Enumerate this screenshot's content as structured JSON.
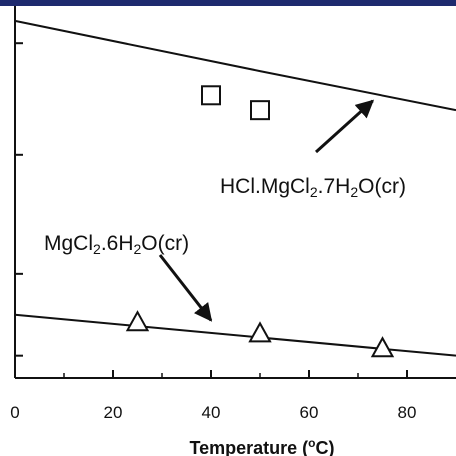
{
  "chart_data": {
    "type": "scatter",
    "title": "",
    "xlabel": "Temperature (",
    "xlabel_sup": "o",
    "xlabel_unit": "C)",
    "ylabel": "",
    "xlim": [
      0,
      90
    ],
    "ylim": [
      0,
      1
    ],
    "x_ticks": [
      "0",
      "20",
      "40",
      "60",
      "80"
    ],
    "grid": false,
    "series": [
      {
        "marker": "square",
        "points": [
          {
            "x": 40,
            "y": 0.76
          },
          {
            "x": 50,
            "y": 0.72
          }
        ]
      },
      {
        "marker": "triangle",
        "points": [
          {
            "x": 25,
            "y": 0.15
          },
          {
            "x": 50,
            "y": 0.12
          },
          {
            "x": 75,
            "y": 0.08
          }
        ]
      }
    ],
    "lines": [
      {
        "points": [
          {
            "x": 0,
            "y": 0.96
          },
          {
            "x": 50,
            "y": 0.825
          },
          {
            "x": 90,
            "y": 0.72
          }
        ]
      },
      {
        "points": [
          {
            "x": 0,
            "y": 0.17
          },
          {
            "x": 90,
            "y": 0.06
          }
        ]
      }
    ],
    "annotations": [
      {
        "parts": [
          {
            "t": "HCl.MgCl",
            "sub": false
          },
          {
            "t": "2",
            "sub": true
          },
          {
            "t": ".7H",
            "sub": false
          },
          {
            "t": "2",
            "sub": true
          },
          {
            "t": "O(cr)",
            "sub": false
          }
        ],
        "arrow_to": {
          "x": 73,
          "y": 0.745
        }
      },
      {
        "parts": [
          {
            "t": "MgCl",
            "sub": false
          },
          {
            "t": "2",
            "sub": true
          },
          {
            "t": ".6H",
            "sub": false
          },
          {
            "t": "2",
            "sub": true
          },
          {
            "t": "O(cr)",
            "sub": false
          }
        ],
        "arrow_to": {
          "x": 40,
          "y": 0.155
        }
      }
    ]
  }
}
